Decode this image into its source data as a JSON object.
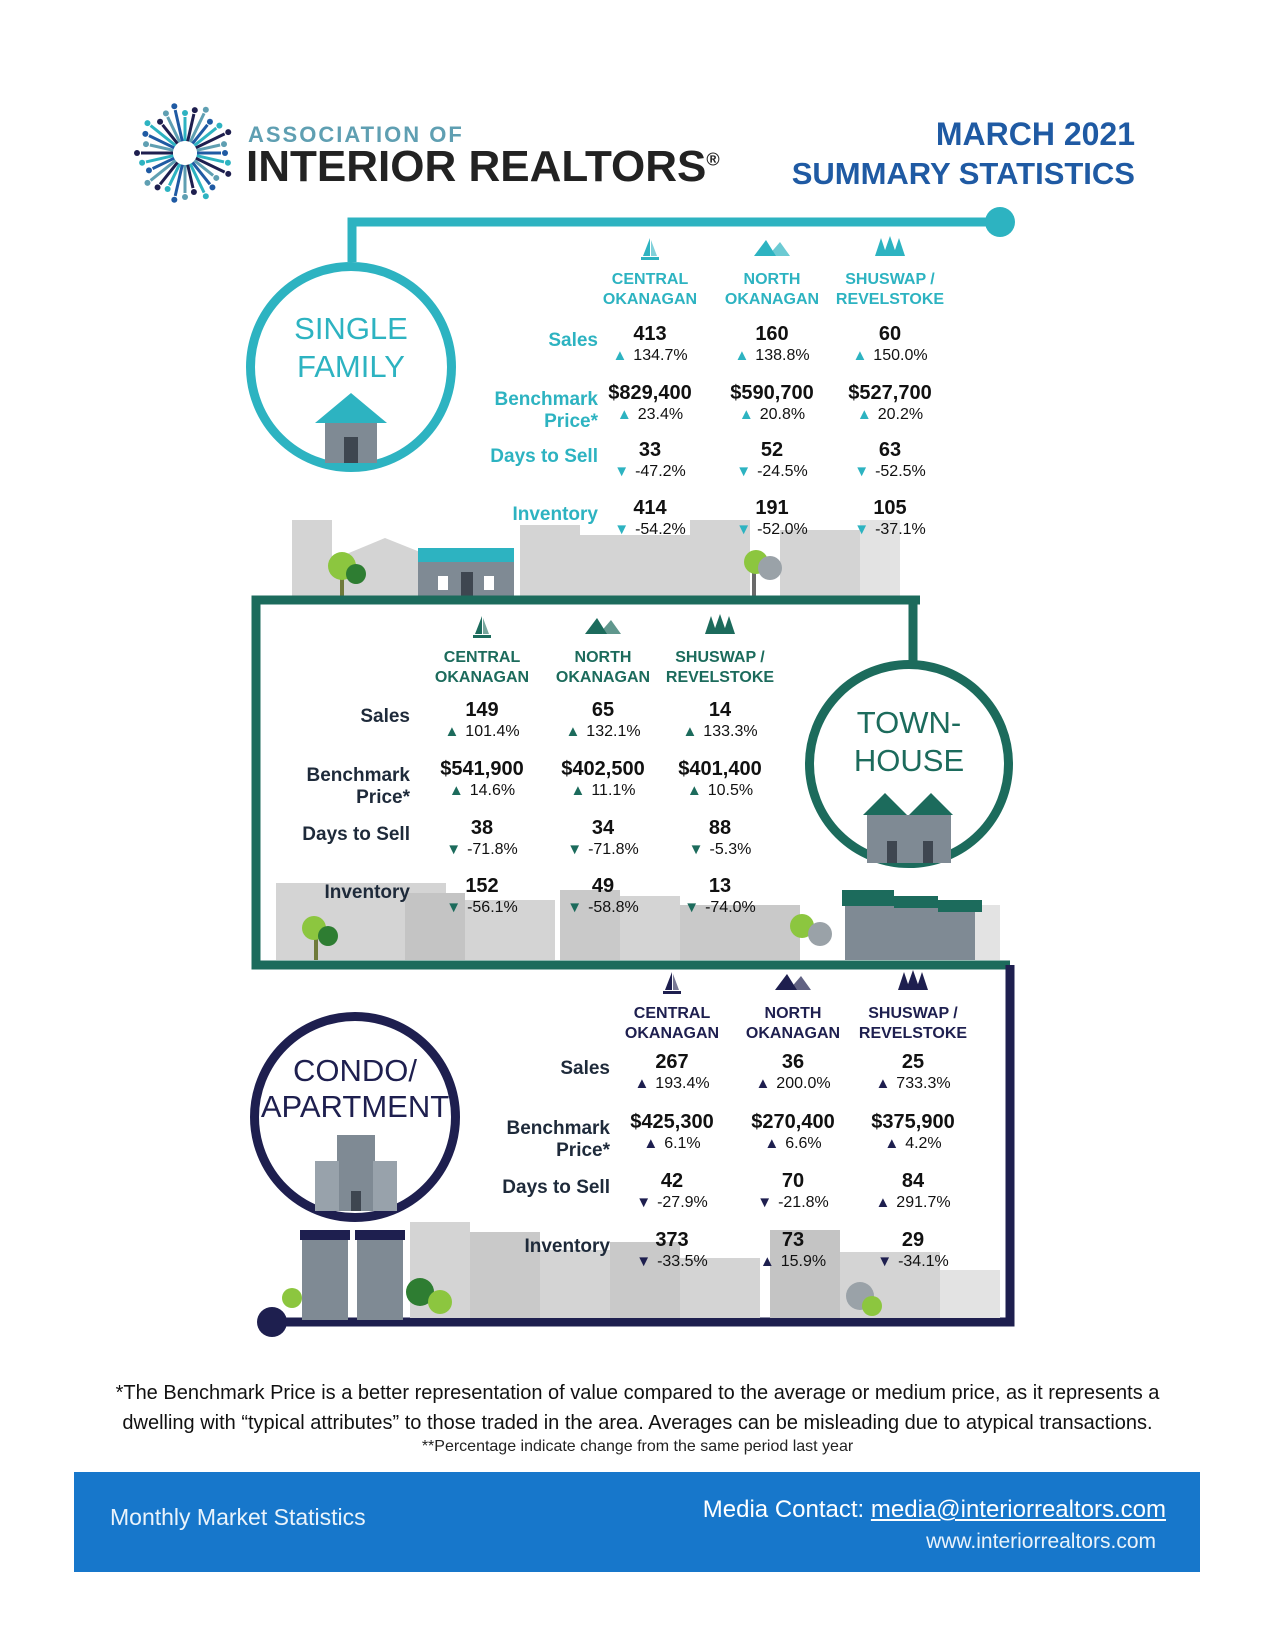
{
  "header": {
    "logo_line1": "ASSOCIATION OF",
    "logo_line2": "INTERIOR REALTORS",
    "logo_reg": "®",
    "title_line1": "MARCH 2021",
    "title_line2": "SUMMARY STATISTICS"
  },
  "colors": {
    "single_family": "#2db3c1",
    "townhouse": "#1c6b5c",
    "condo": "#1e1f4f",
    "footer": "#1777cb"
  },
  "regions": [
    {
      "line1": "CENTRAL",
      "line2": "OKANAGAN",
      "icon": "sailboat-icon"
    },
    {
      "line1": "NORTH",
      "line2": "OKANAGAN",
      "icon": "mountains-icon"
    },
    {
      "line1": "SHUSWAP /",
      "line2": "REVELSTOKE",
      "icon": "trees-icon"
    }
  ],
  "row_labels": {
    "sales": "Sales",
    "benchmark": "Benchmark Price*",
    "days": "Days to Sell",
    "inventory": "Inventory"
  },
  "sections": {
    "single_family": {
      "title_line1": "SINGLE",
      "title_line2": "FAMILY",
      "rows": {
        "sales": [
          {
            "value": "413",
            "change": "134.7%",
            "dir": "up"
          },
          {
            "value": "160",
            "change": "138.8%",
            "dir": "up"
          },
          {
            "value": "60",
            "change": "150.0%",
            "dir": "up"
          }
        ],
        "benchmark": [
          {
            "value": "$829,400",
            "change": "23.4%",
            "dir": "up"
          },
          {
            "value": "$590,700",
            "change": "20.8%",
            "dir": "up"
          },
          {
            "value": "$527,700",
            "change": "20.2%",
            "dir": "up"
          }
        ],
        "days": [
          {
            "value": "33",
            "change": "-47.2%",
            "dir": "down"
          },
          {
            "value": "52",
            "change": "-24.5%",
            "dir": "down"
          },
          {
            "value": "63",
            "change": "-52.5%",
            "dir": "down"
          }
        ],
        "inventory": [
          {
            "value": "414",
            "change": "-54.2%",
            "dir": "down"
          },
          {
            "value": "191",
            "change": "-52.0%",
            "dir": "down"
          },
          {
            "value": "105",
            "change": "-37.1%",
            "dir": "down"
          }
        ]
      }
    },
    "townhouse": {
      "title_line1": "TOWN-",
      "title_line2": "HOUSE",
      "rows": {
        "sales": [
          {
            "value": "149",
            "change": "101.4%",
            "dir": "up"
          },
          {
            "value": "65",
            "change": "132.1%",
            "dir": "up"
          },
          {
            "value": "14",
            "change": "133.3%",
            "dir": "up"
          }
        ],
        "benchmark": [
          {
            "value": "$541,900",
            "change": "14.6%",
            "dir": "up"
          },
          {
            "value": "$402,500",
            "change": "11.1%",
            "dir": "up"
          },
          {
            "value": "$401,400",
            "change": "10.5%",
            "dir": "up"
          }
        ],
        "days": [
          {
            "value": "38",
            "change": "-71.8%",
            "dir": "down"
          },
          {
            "value": "34",
            "change": "-71.8%",
            "dir": "down"
          },
          {
            "value": "88",
            "change": "-5.3%",
            "dir": "down"
          }
        ],
        "inventory": [
          {
            "value": "152",
            "change": "-56.1%",
            "dir": "down"
          },
          {
            "value": "49",
            "change": "-58.8%",
            "dir": "down"
          },
          {
            "value": "13",
            "change": "-74.0%",
            "dir": "down"
          }
        ]
      }
    },
    "condo": {
      "title_line1": "CONDO/",
      "title_line2": "APARTMENT",
      "rows": {
        "sales": [
          {
            "value": "267",
            "change": "193.4%",
            "dir": "up"
          },
          {
            "value": "36",
            "change": "200.0%",
            "dir": "up"
          },
          {
            "value": "25",
            "change": "733.3%",
            "dir": "up"
          }
        ],
        "benchmark": [
          {
            "value": "$425,300",
            "change": "6.1%",
            "dir": "up"
          },
          {
            "value": "$270,400",
            "change": "6.6%",
            "dir": "up"
          },
          {
            "value": "$375,900",
            "change": "4.2%",
            "dir": "up"
          }
        ],
        "days": [
          {
            "value": "42",
            "change": "-27.9%",
            "dir": "down"
          },
          {
            "value": "70",
            "change": "-21.8%",
            "dir": "down"
          },
          {
            "value": "84",
            "change": "291.7%",
            "dir": "up"
          }
        ],
        "inventory": [
          {
            "value": "373",
            "change": "-33.5%",
            "dir": "down"
          },
          {
            "value": "73",
            "change": "15.9%",
            "dir": "up"
          },
          {
            "value": "29",
            "change": "-34.1%",
            "dir": "down"
          }
        ]
      }
    }
  },
  "footnote": {
    "line1": "*The Benchmark Price is a better representation of value compared to the average or medium price, as it represents a",
    "line2": "dwelling with “typical attributes” to those traded in the area. Averages can be misleading due to atypical transactions.",
    "line3": "**Percentage indicate change from the same period last year"
  },
  "footer": {
    "left": "Monthly Market Statistics",
    "media_label": "Media Contact: ",
    "media_email": "media@interiorrealtors.com",
    "website": "www.interiorrealtors.com"
  }
}
